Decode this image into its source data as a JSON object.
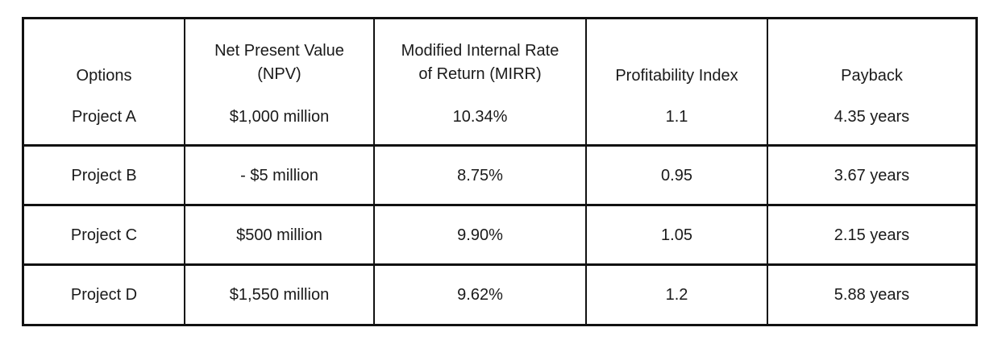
{
  "table": {
    "headers": [
      {
        "lines": [
          "Options"
        ]
      },
      {
        "lines": [
          "Net Present Value",
          "(NPV)"
        ]
      },
      {
        "lines": [
          "Modified Internal Rate",
          "of Return (MIRR)"
        ]
      },
      {
        "lines": [
          "Profitability Index"
        ]
      },
      {
        "lines": [
          "Payback"
        ]
      }
    ],
    "rows": [
      [
        "Project A",
        "$1,000 million",
        "10.34%",
        "1.1",
        "4.35 years"
      ],
      [
        "Project B",
        "- $5 million",
        "8.75%",
        "0.95",
        "3.67 years"
      ],
      [
        "Project C",
        "$500 million",
        "9.90%",
        "1.05",
        "2.15 years"
      ],
      [
        "Project D",
        "$1,550 million",
        "9.62%",
        "1.2",
        "5.88 years"
      ]
    ]
  }
}
